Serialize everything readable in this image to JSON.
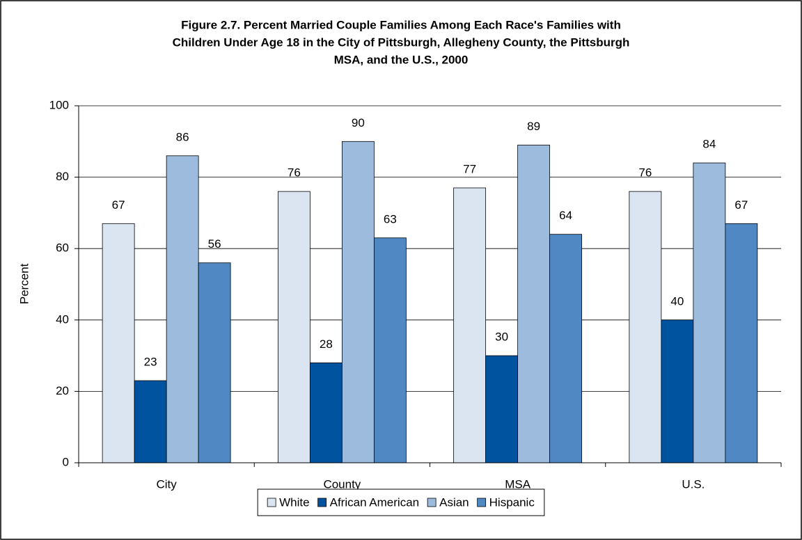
{
  "chart_data": {
    "type": "bar",
    "title": [
      "Figure 2.7.  Percent Married Couple Families Among Each Race's Families with",
      "Children Under Age 18 in the City of Pittsburgh, Allegheny County, the Pittsburgh",
      "MSA, and the U.S., 2000"
    ],
    "y_label": "Percent",
    "categories": [
      "City",
      "County",
      "MSA",
      "U.S."
    ],
    "series": [
      {
        "name": "White",
        "color": "#dbe5f1",
        "values": [
          67,
          76,
          77,
          76
        ]
      },
      {
        "name": "African American",
        "color": "#00539f",
        "values": [
          23,
          28,
          30,
          40
        ]
      },
      {
        "name": "Asian",
        "color": "#9dbbdd",
        "values": [
          86,
          90,
          89,
          84
        ]
      },
      {
        "name": "Hispanic",
        "color": "#4f88c2",
        "values": [
          56,
          63,
          64,
          67
        ]
      }
    ],
    "ylim": [
      0,
      100
    ],
    "yticks": [
      0,
      20,
      40,
      60,
      80,
      100
    ],
    "grid": true,
    "legend": "bottom"
  }
}
